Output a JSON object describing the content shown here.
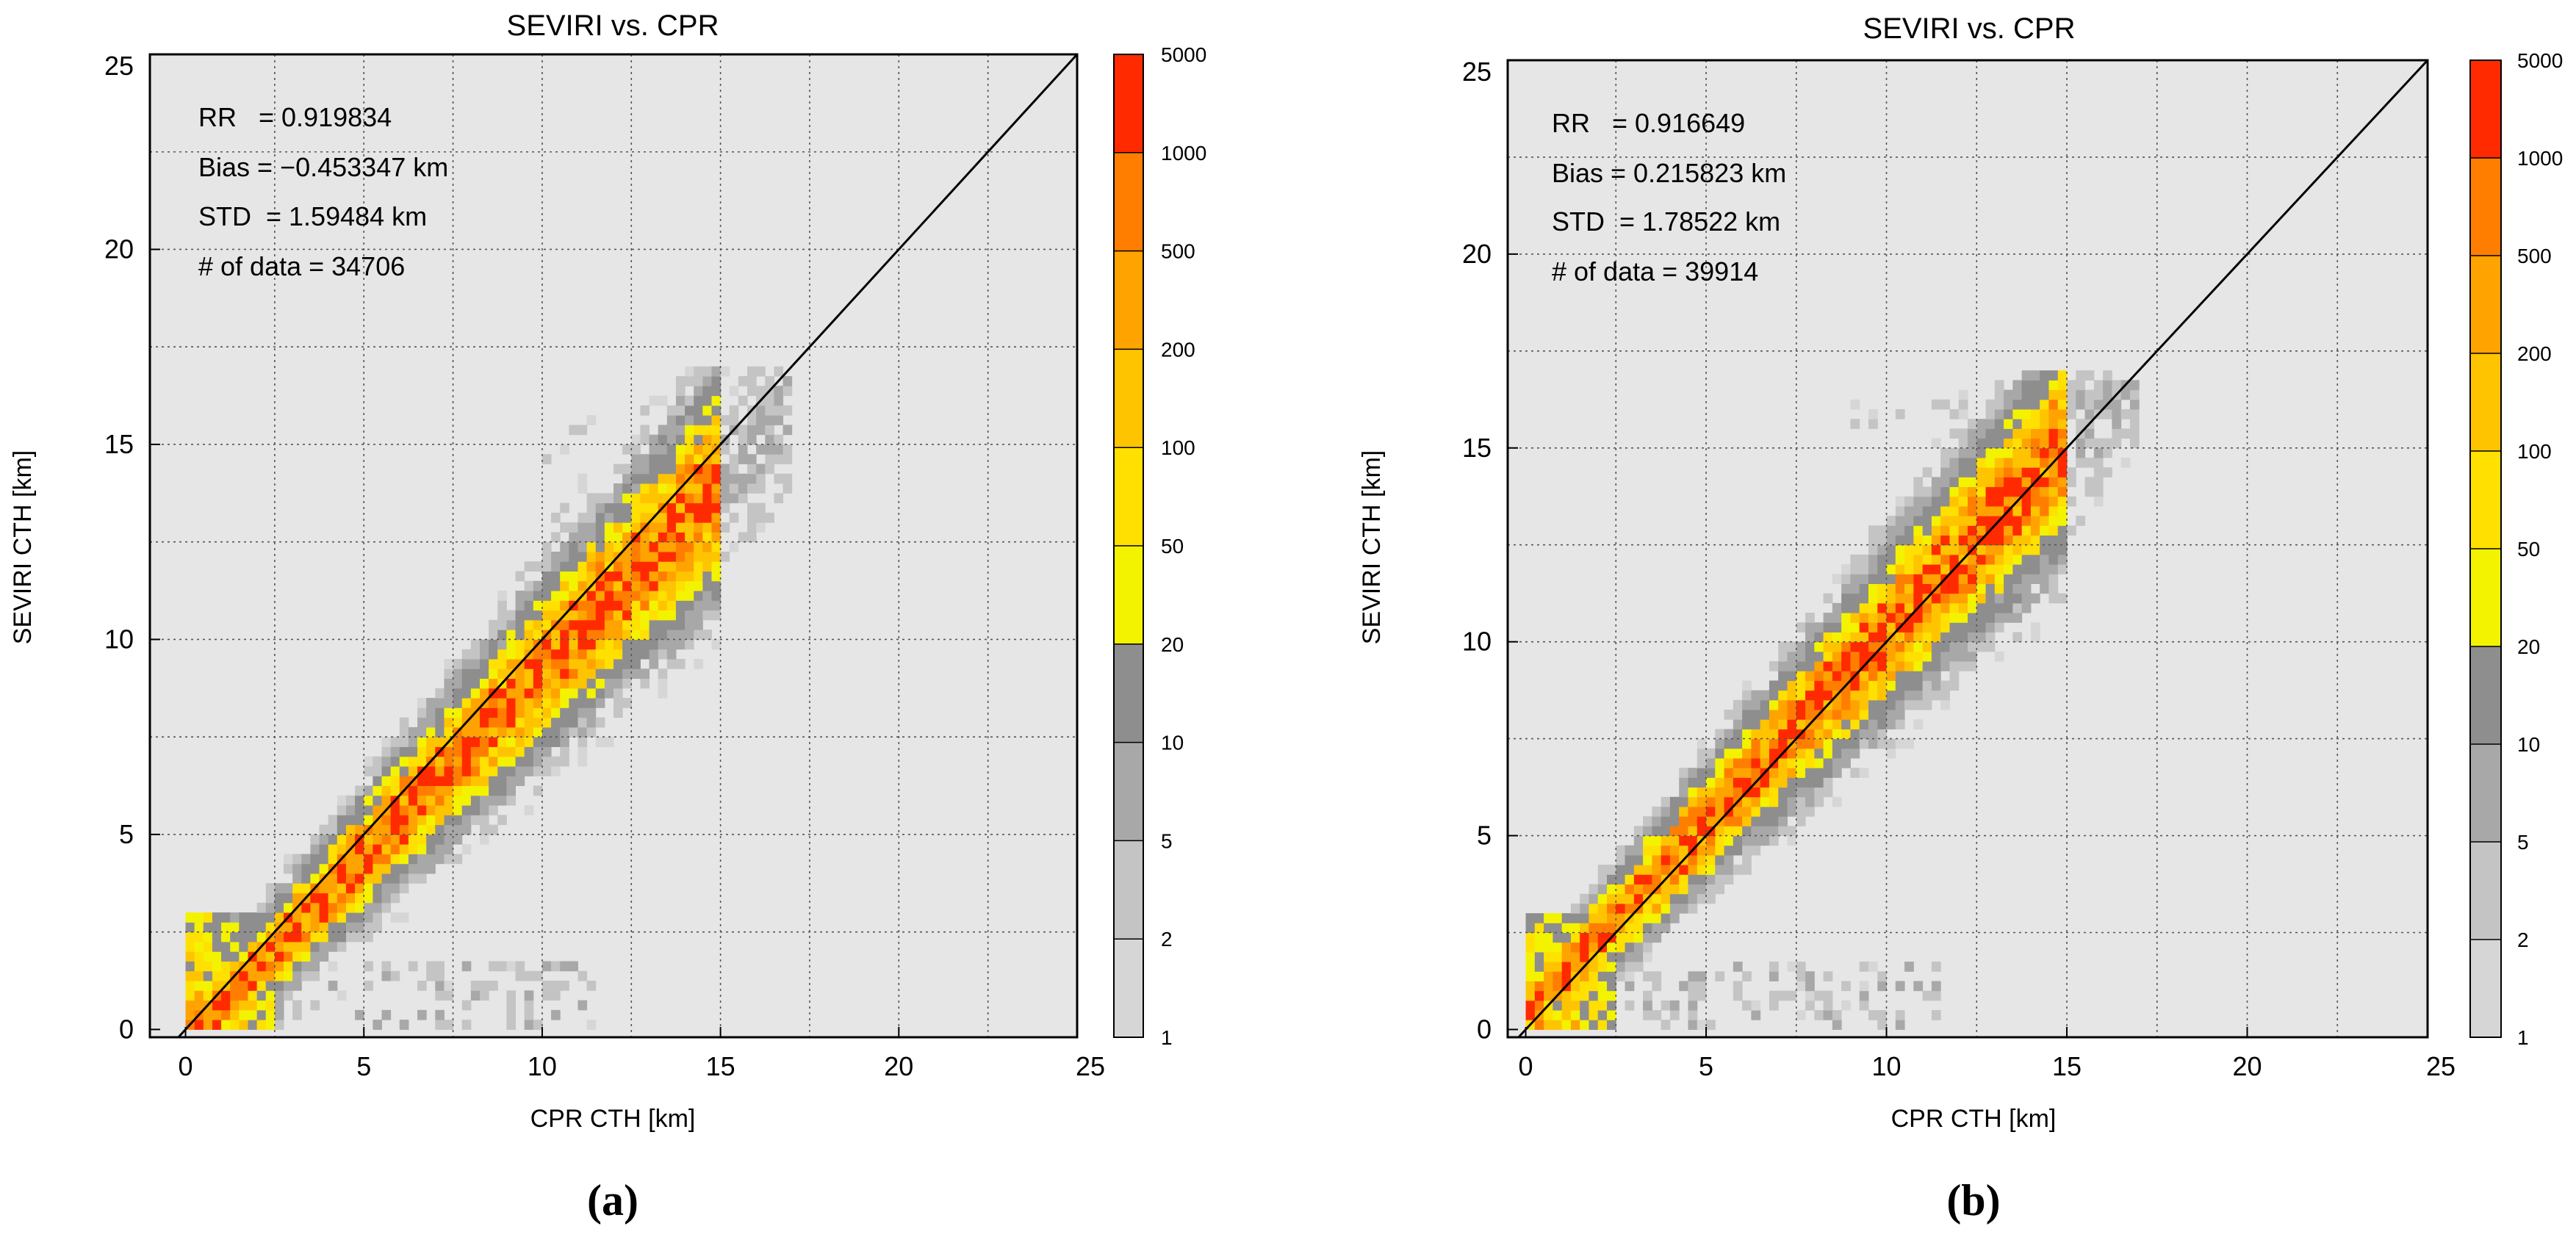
{
  "figure": {
    "background": "#ffffff",
    "plot_background": "#e6e6e6"
  },
  "colorbar": {
    "labels": [
      "1",
      "2",
      "5",
      "10",
      "20",
      "50",
      "100",
      "200",
      "500",
      "1000",
      "5000"
    ],
    "colors": [
      "#d6d6d6",
      "#c4c4c4",
      "#a8a8a8",
      "#8e8e8e",
      "#f3f300",
      "#ffe000",
      "#ffc400",
      "#ffa300",
      "#ff7e00",
      "#ff2a00"
    ]
  },
  "chart_data": [
    {
      "type": "heatmap",
      "title": "SEVIRI vs. CPR",
      "xlabel": "CPR CTH [km]",
      "ylabel": "SEVIRI CTH [km]",
      "xlim": [
        -1,
        25
      ],
      "ylim": [
        -0.2,
        25
      ],
      "xticks": [
        0,
        5,
        10,
        15,
        20,
        25
      ],
      "yticks": [
        0,
        5,
        10,
        15,
        20,
        25
      ],
      "grid": true,
      "one_to_one_line": true,
      "stats": [
        "RR   = 0.919834",
        "Bias = −0.453347 km",
        "STD  = 1.59484 km",
        "# of data = 34706"
      ],
      "panel_label": "(a)",
      "density": {
        "main_slope": 0.96,
        "main_offset": -0.35,
        "low_band": true,
        "high_cluster": true
      }
    },
    {
      "type": "heatmap",
      "title": "SEVIRI vs. CPR",
      "xlabel": "CPR CTH [km]",
      "ylabel": "SEVIRI CTH [km]",
      "xlim": [
        -0.5,
        25
      ],
      "ylim": [
        -0.2,
        25
      ],
      "xticks": [
        0,
        5,
        10,
        15,
        20,
        25
      ],
      "yticks": [
        0,
        5,
        10,
        15,
        20,
        25
      ],
      "grid": true,
      "one_to_one_line": true,
      "stats": [
        "RR   = 0.916649",
        "Bias = 0.215823 km",
        "STD  = 1.78522 km",
        "# of data = 39914"
      ],
      "panel_label": "(b)",
      "density": {
        "main_slope": 0.98,
        "main_offset": 0.4,
        "low_band": true,
        "high_cluster": false
      }
    }
  ]
}
